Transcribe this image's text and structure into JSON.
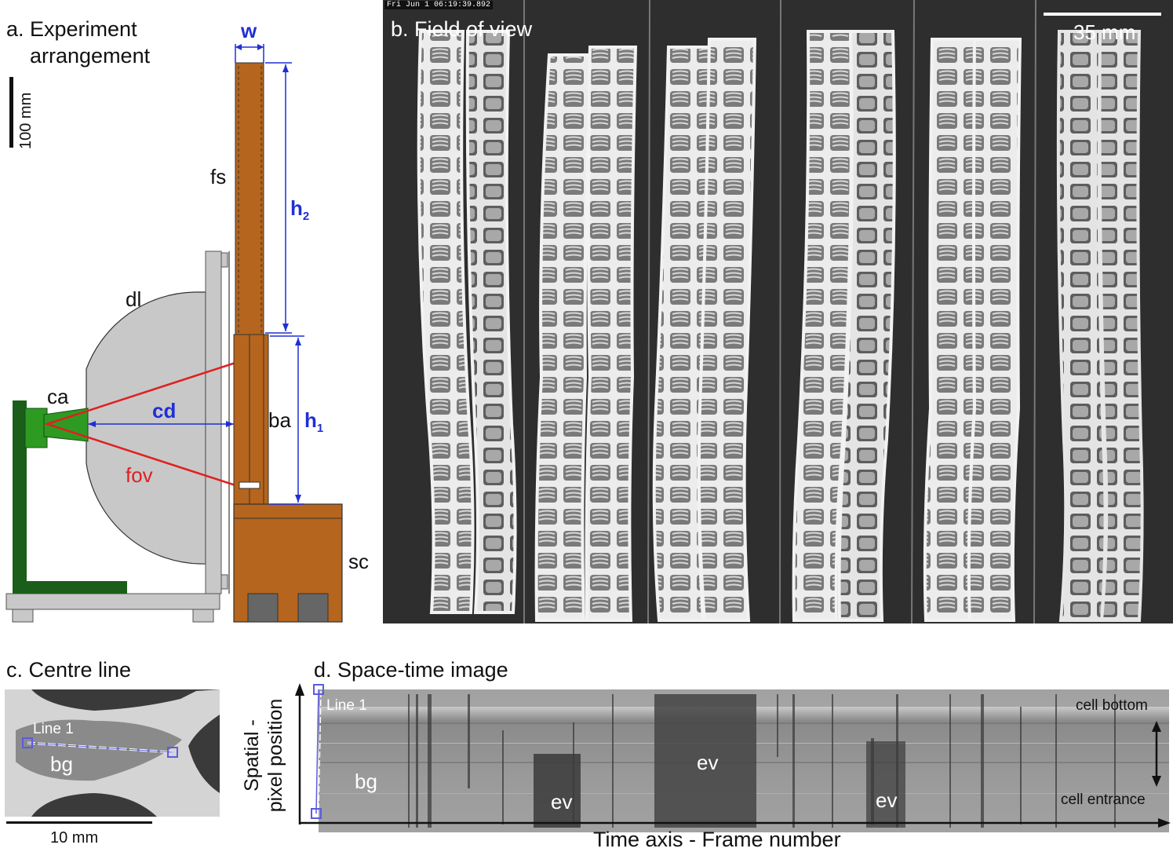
{
  "panel_a": {
    "title": "a. Experiment\narrangement",
    "title_line1": "a. Experiment",
    "title_line2": "arrangement",
    "scale_label": "100 mm",
    "labels": {
      "w": "w",
      "fs": "fs",
      "h2": "h",
      "h2_sub": "2",
      "dl": "dl",
      "ca": "ca",
      "cd": "cd",
      "ba": "ba",
      "h1": "h",
      "h1_sub": "1",
      "fov": "fov",
      "sc": "sc"
    },
    "colors": {
      "wood": "#b5651d",
      "dark_green": "#1a5e1a",
      "green": "#2e9a22",
      "grey": "#c8c8c8",
      "blue": "#1f2fd6",
      "red": "#e02020"
    }
  },
  "panel_b": {
    "title": "b. Field of view",
    "timestamp": "Fri Jun  1 06:19:39.892",
    "scale_label": "35 mm"
  },
  "panel_c": {
    "title": "c. Centre line",
    "line_label": "Line 1",
    "region_label": "bg",
    "scale_label": "10 mm"
  },
  "panel_d": {
    "title": "d. Space-time image",
    "line_label": "Line 1",
    "bg_label": "bg",
    "events": [
      "ev",
      "ev",
      "ev"
    ],
    "cell_bottom": "cell bottom",
    "cell_entrance": "cell entrance",
    "y_axis_line1": "Spatial -",
    "y_axis_line2": "pixel position",
    "x_axis": "Time axis - Frame number"
  }
}
